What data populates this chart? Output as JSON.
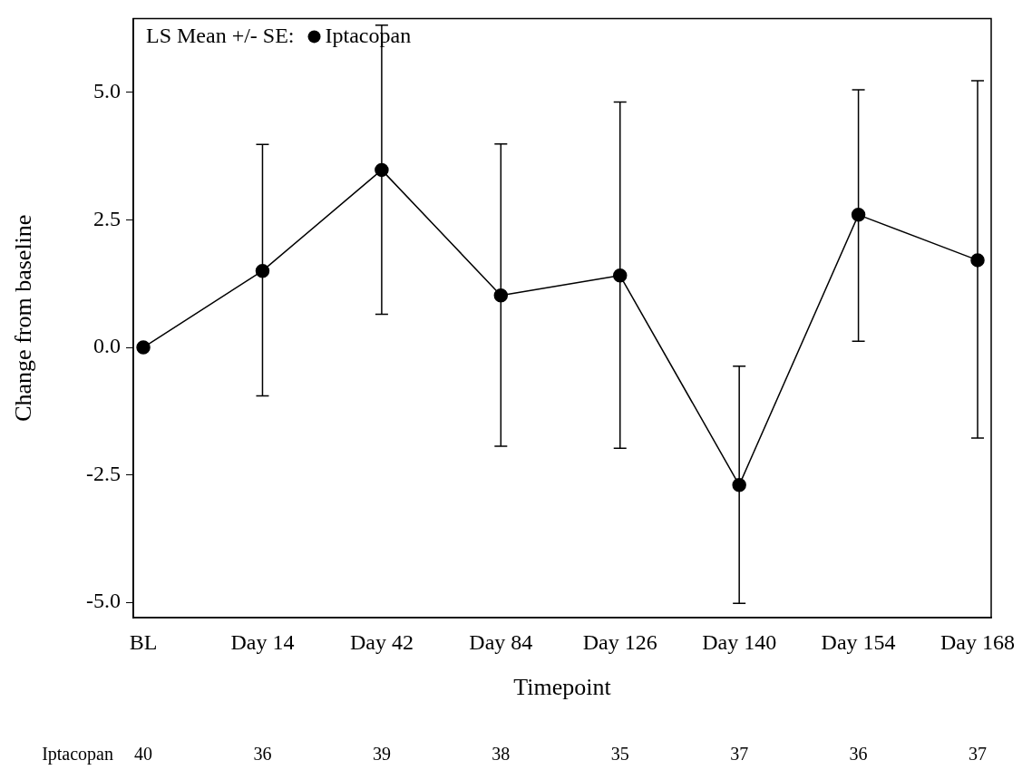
{
  "chart_data": {
    "type": "line",
    "xlabel": "Timepoint",
    "ylabel": "Change from baseline",
    "legend_title": "LS Mean +/- SE:",
    "legend": "top left",
    "marker": "circle",
    "line_style": "solid",
    "grid": false,
    "categories": [
      "BL",
      "Day 14",
      "Day 42",
      "Day 84",
      "Day 126",
      "Day 140",
      "Day 154",
      "Day 168"
    ],
    "series": [
      {
        "name": "Iptacopan",
        "color": "#000000",
        "values": [
          0,
          1.5,
          3.48,
          1.02,
          1.41,
          -2.7,
          2.6,
          1.71
        ],
        "errors": [
          null,
          [
            -0.95,
            3.98
          ],
          [
            0.65,
            6.32
          ],
          [
            -1.94,
            3.99
          ],
          [
            -1.98,
            4.81
          ],
          [
            -5.02,
            -0.37
          ],
          [
            0.12,
            5.05
          ],
          [
            -1.78,
            5.23
          ]
        ]
      }
    ],
    "ylim": [
      -5.3,
      6.45
    ],
    "yticks": [
      {
        "value": -5,
        "label": "-5.0"
      },
      {
        "value": -2.5,
        "label": "-2.5"
      },
      {
        "value": 0,
        "label": "0.0"
      },
      {
        "value": 2.5,
        "label": "2.5"
      },
      {
        "value": 5,
        "label": "5.0"
      }
    ],
    "annotations": [
      "Iptacopan",
      "40",
      "36",
      "39",
      "38",
      "35",
      "37",
      "36",
      "37"
    ]
  }
}
